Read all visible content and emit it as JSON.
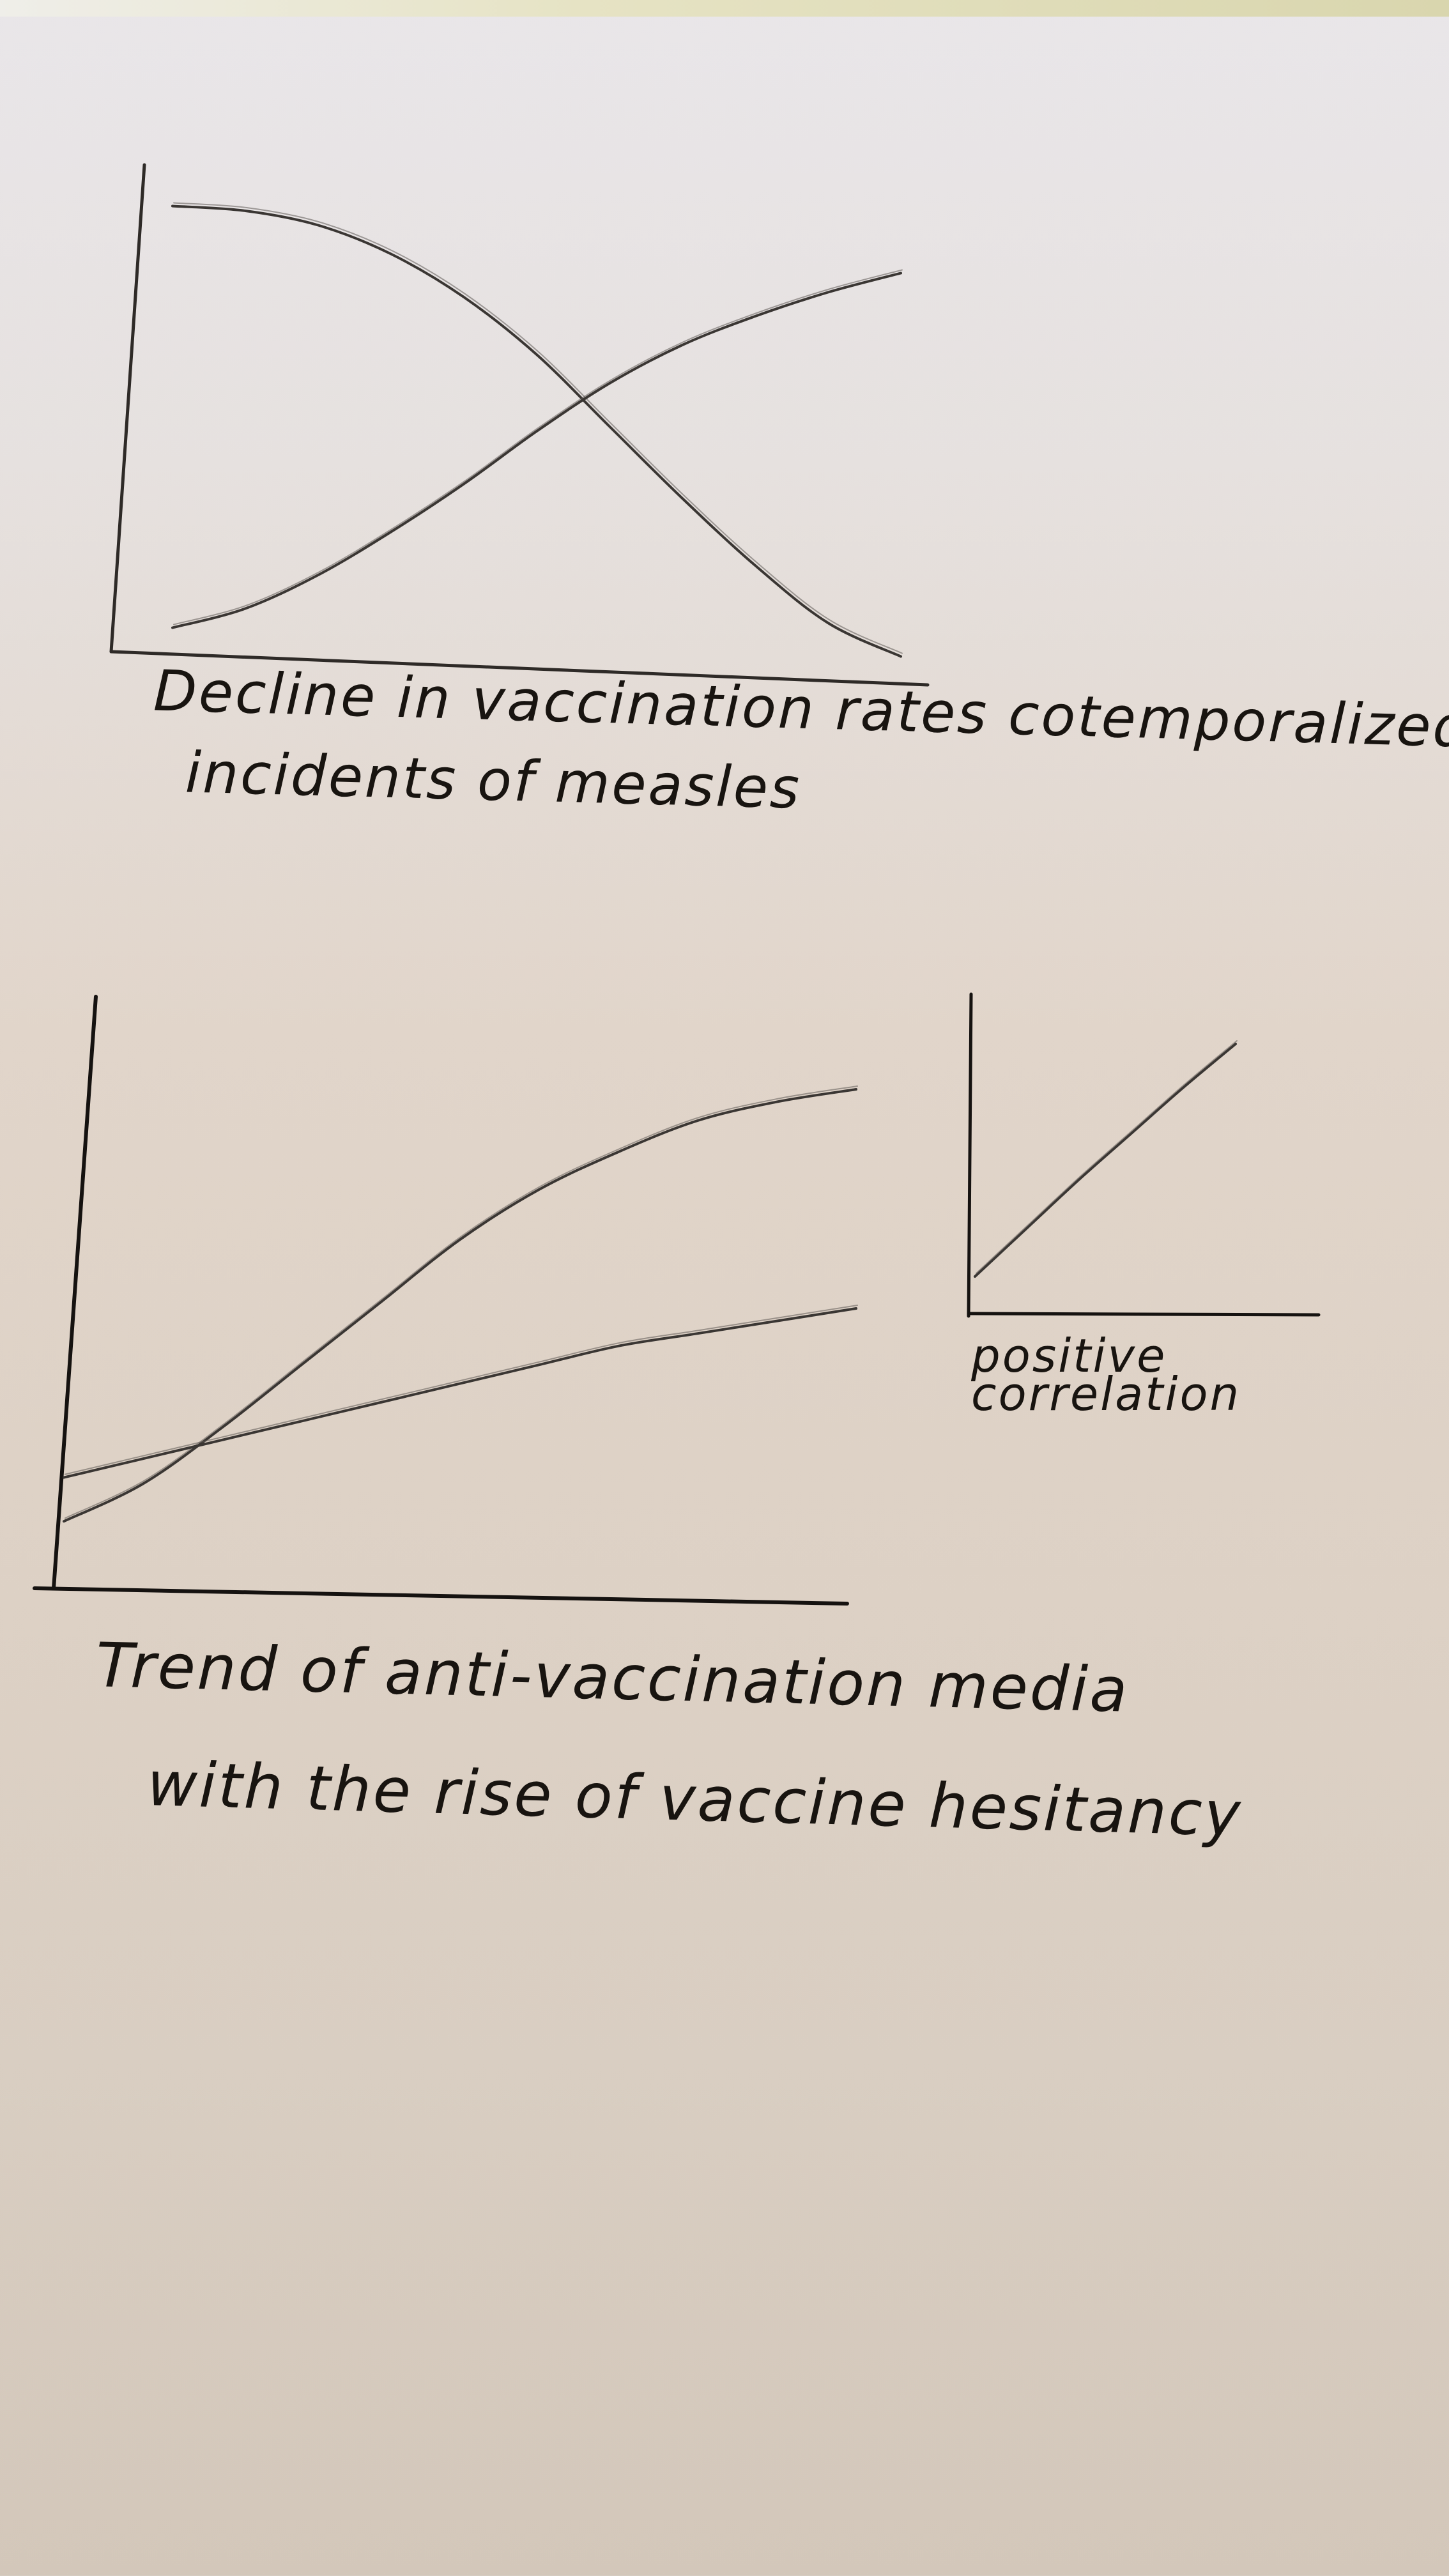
{
  "captions": {
    "chart1_line1": "Decline in vaccination rates cotemporalized w/",
    "chart1_line2": "incidents of measles",
    "chart2_line1": "Trend of anti-vaccination media",
    "chart2_line2": "with the rise of vaccine hesitancy",
    "chart3_line1": "positive",
    "chart3_line2": "correlation"
  },
  "colors": {
    "ink": "#181410",
    "pencil": "#3a3633",
    "pencil_light": "#5e5955"
  },
  "chart_data": [
    {
      "type": "line",
      "title": "",
      "xlabel": "",
      "ylabel": "",
      "xlim": [
        0,
        10
      ],
      "ylim": [
        0,
        10
      ],
      "grid": false,
      "series": [
        {
          "x": [
            0,
            1,
            2,
            3,
            4,
            5,
            6,
            7,
            8,
            9,
            10
          ],
          "values": [
            9.7,
            9.6,
            9.3,
            8.7,
            7.8,
            6.6,
            5.1,
            3.6,
            2.2,
            1.0,
            0.3
          ]
        },
        {
          "x": [
            0,
            1,
            2,
            3,
            4,
            5,
            6,
            7,
            8,
            9,
            10
          ],
          "values": [
            0.9,
            1.3,
            2.0,
            2.9,
            3.9,
            5.0,
            6.0,
            6.8,
            7.4,
            7.9,
            8.3
          ]
        }
      ]
    },
    {
      "type": "line",
      "title": "",
      "xlabel": "",
      "ylabel": "",
      "xlim": [
        0,
        10
      ],
      "ylim": [
        0,
        10
      ],
      "grid": false,
      "series": [
        {
          "x": [
            0,
            1,
            2,
            3,
            4,
            5,
            6,
            7,
            8,
            9,
            10
          ],
          "values": [
            0.6,
            1.2,
            2.1,
            3.1,
            4.1,
            5.1,
            5.9,
            6.5,
            7.0,
            7.3,
            7.5
          ]
        },
        {
          "x": [
            0,
            1,
            2,
            3,
            4,
            5,
            6,
            7,
            8,
            9,
            10
          ],
          "values": [
            1.3,
            1.6,
            1.9,
            2.2,
            2.5,
            2.8,
            3.1,
            3.4,
            3.6,
            3.8,
            4.0
          ]
        }
      ]
    },
    {
      "type": "line",
      "title": "",
      "xlabel": "",
      "ylabel": "",
      "xlim": [
        0,
        10
      ],
      "ylim": [
        0,
        10
      ],
      "grid": false,
      "series": [
        {
          "x": [
            0,
            2,
            4,
            6,
            8,
            10
          ],
          "values": [
            0.8,
            2.7,
            4.6,
            6.4,
            8.2,
            9.9
          ]
        }
      ]
    }
  ]
}
